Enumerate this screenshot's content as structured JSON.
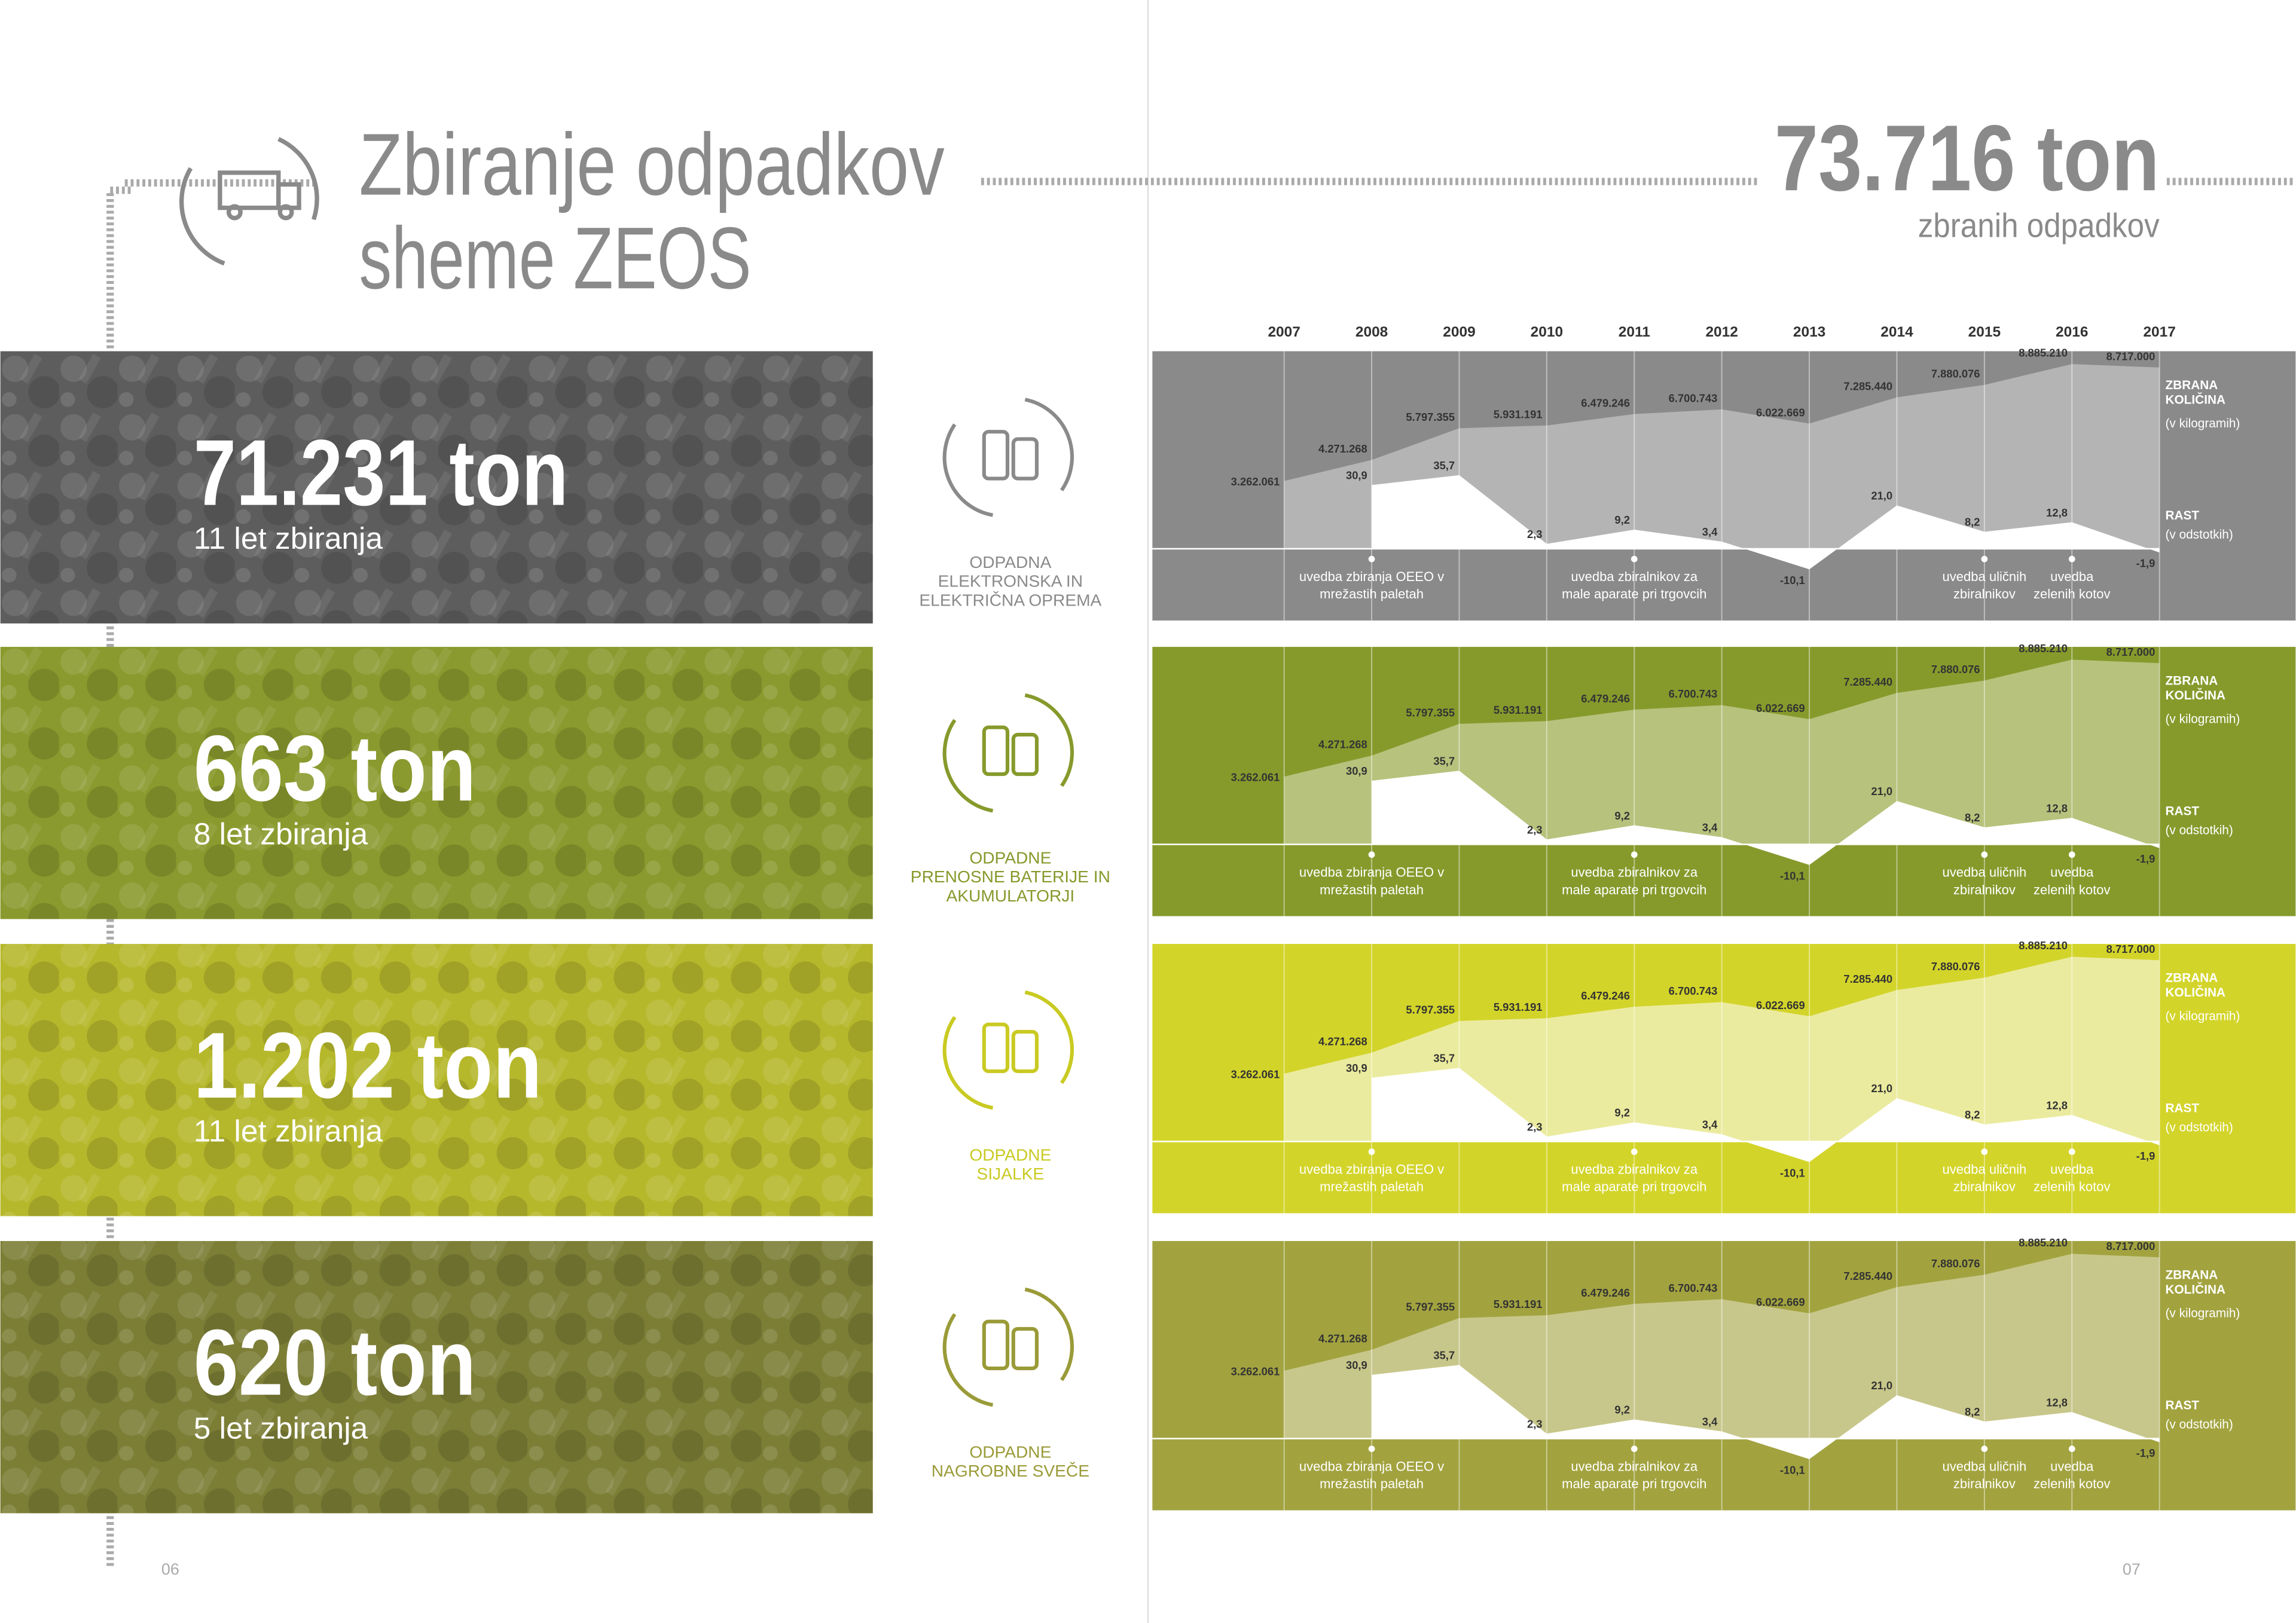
{
  "header": {
    "title_lines": [
      "Zbiranje odpadkov",
      "sheme ZEOS"
    ],
    "total": "73.716 ton",
    "total_caption": "zbranih odpadkov"
  },
  "streams": [
    {
      "amount": "71.231 ton",
      "period": "11 let zbiranja",
      "label_lines": [
        "ODPADNA",
        "ELEKTRONSKA IN",
        "ELEKTRIČNA OPREMA"
      ]
    },
    {
      "amount": "663 ton",
      "period": "8 let zbiranja",
      "label_lines": [
        "ODPADNE",
        "PRENOSNE BATERIJE IN",
        "AKUMULATORJI"
      ]
    },
    {
      "amount": "1.202 ton",
      "period": "11 let zbiranja",
      "label_lines": [
        "ODPADNE",
        "SIJALKE"
      ]
    },
    {
      "amount": "620 ton",
      "period": "5 let zbiranja",
      "label_lines": [
        "ODPADNE",
        "NAGROBNE SVEČE"
      ]
    }
  ],
  "chart_data": {
    "type": "area",
    "x": [
      2007,
      2008,
      2009,
      2010,
      2011,
      2012,
      2013,
      2014,
      2015,
      2016,
      2017
    ],
    "xticks": [
      2007,
      2008,
      2009,
      2010,
      2011,
      2012,
      2013,
      2014,
      2015,
      2016,
      2017
    ],
    "ylim": [
      -3450000,
      9500000
    ],
    "y2lim": [
      -35,
      96
    ],
    "series": [
      {
        "name": "ZBRANA KOLIČINA",
        "unit": "(v kilogramih)",
        "values": [
          3262061,
          4271268,
          5797355,
          5931191,
          6479246,
          6700743,
          6022669,
          7285440,
          7880076,
          8885210,
          8717000
        ],
        "value_labels": [
          "3.262.061",
          "4.271.268",
          "5.797.355",
          "5.931.191",
          "6.479.246",
          "6.700.743",
          "6.022.669",
          "7.285.440",
          "7.880.076",
          "8.885.210",
          "8.717.000"
        ]
      },
      {
        "name": "RAST",
        "unit": "(v odstotkih)",
        "axis": "y2",
        "values": [
          null,
          30.9,
          35.7,
          2.3,
          9.2,
          3.4,
          -10.1,
          21.0,
          8.2,
          12.8,
          -1.9
        ],
        "value_labels": [
          null,
          "30,9",
          "35,7",
          "2,3",
          "9,2",
          "3,4",
          "-10,1",
          "21,0",
          "8,2",
          "12,8",
          "-1,9"
        ]
      }
    ],
    "annotations": [
      {
        "x": 2008,
        "lines": [
          "uvedba zbiranja OEEO v",
          "mrežastih paletah"
        ]
      },
      {
        "x": 2011,
        "lines": [
          "uvedba zbiralnikov za",
          "male aparate pri trgovcih"
        ]
      },
      {
        "x": 2015,
        "lines": [
          "uvedba uličnih",
          "zbiralnikov"
        ]
      },
      {
        "x": 2016,
        "lines": [
          "uvedba",
          "zelenih kotov"
        ]
      }
    ],
    "panels": [
      {
        "color": "#8a8a8a",
        "fill": "#b4b4b4",
        "photo": "#5d5d5d",
        "label": "#8a8a8a"
      },
      {
        "color": "#869a2c",
        "fill": "#b7c27c",
        "photo": "#8a9a2e",
        "label": "#869a2c"
      },
      {
        "color": "#d3d42a",
        "fill": "#ebeb9f",
        "photo": "#b6b82c",
        "label": "#c9ca22"
      },
      {
        "color": "#a2a33f",
        "fill": "#c8c78b",
        "photo": "#7c7e36",
        "label": "#9a9b38"
      }
    ]
  },
  "page_numbers": [
    "06",
    "07"
  ]
}
